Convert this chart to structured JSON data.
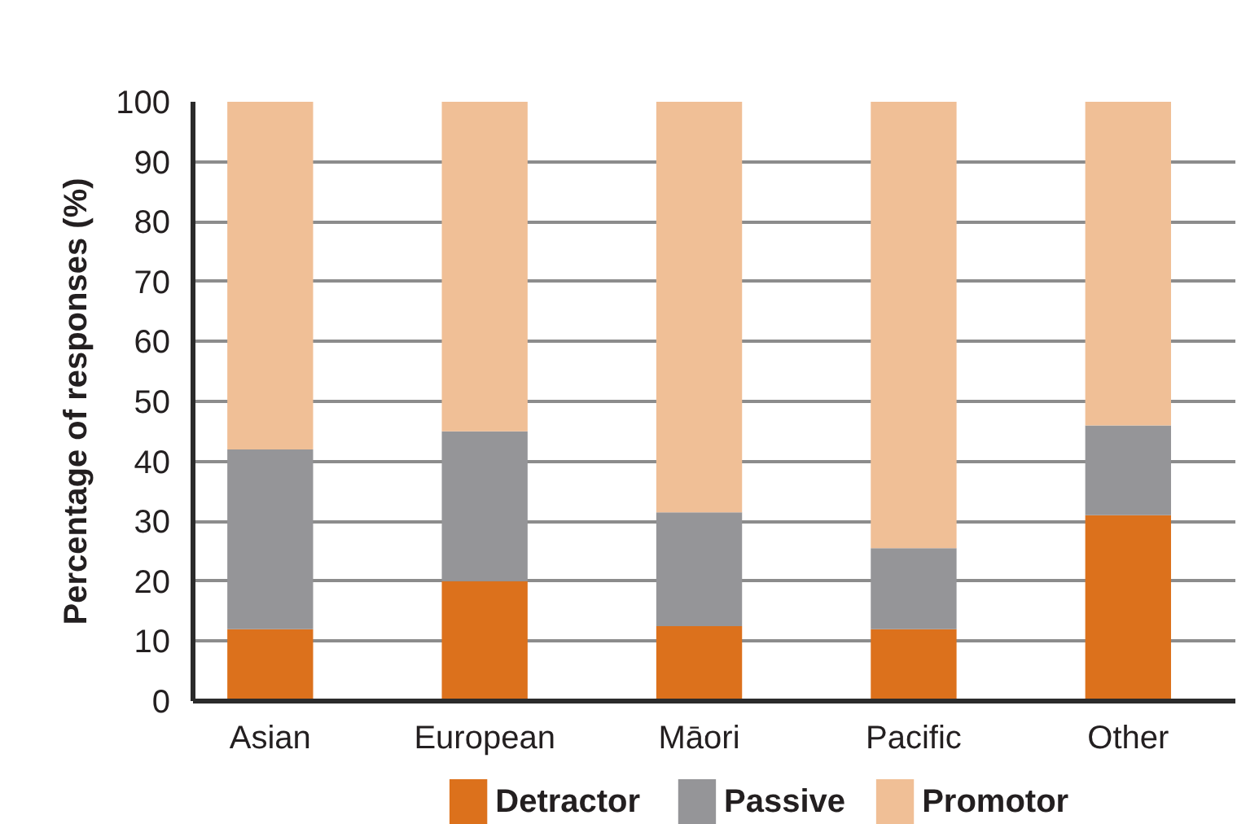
{
  "chart_data": {
    "type": "bar",
    "stacked": true,
    "ylabel": "Percentage of responses (%)",
    "categories": [
      "Asian",
      "European",
      "Māori",
      "Pacific",
      "Other"
    ],
    "series": [
      {
        "name": "Detractor",
        "color": "#dc711c",
        "values": [
          12,
          20,
          12.5,
          12,
          31
        ]
      },
      {
        "name": "Passive",
        "color": "#959598",
        "values": [
          30,
          25,
          19,
          13.5,
          15
        ]
      },
      {
        "name": "Promotor",
        "color": "#f0bf96",
        "values": [
          58,
          55,
          68.5,
          74.5,
          54
        ]
      }
    ],
    "ylim": [
      0,
      100
    ],
    "yticks": [
      0,
      10,
      20,
      30,
      40,
      50,
      60,
      70,
      80,
      90,
      100
    ],
    "grid": "y",
    "legend": "bottom"
  }
}
